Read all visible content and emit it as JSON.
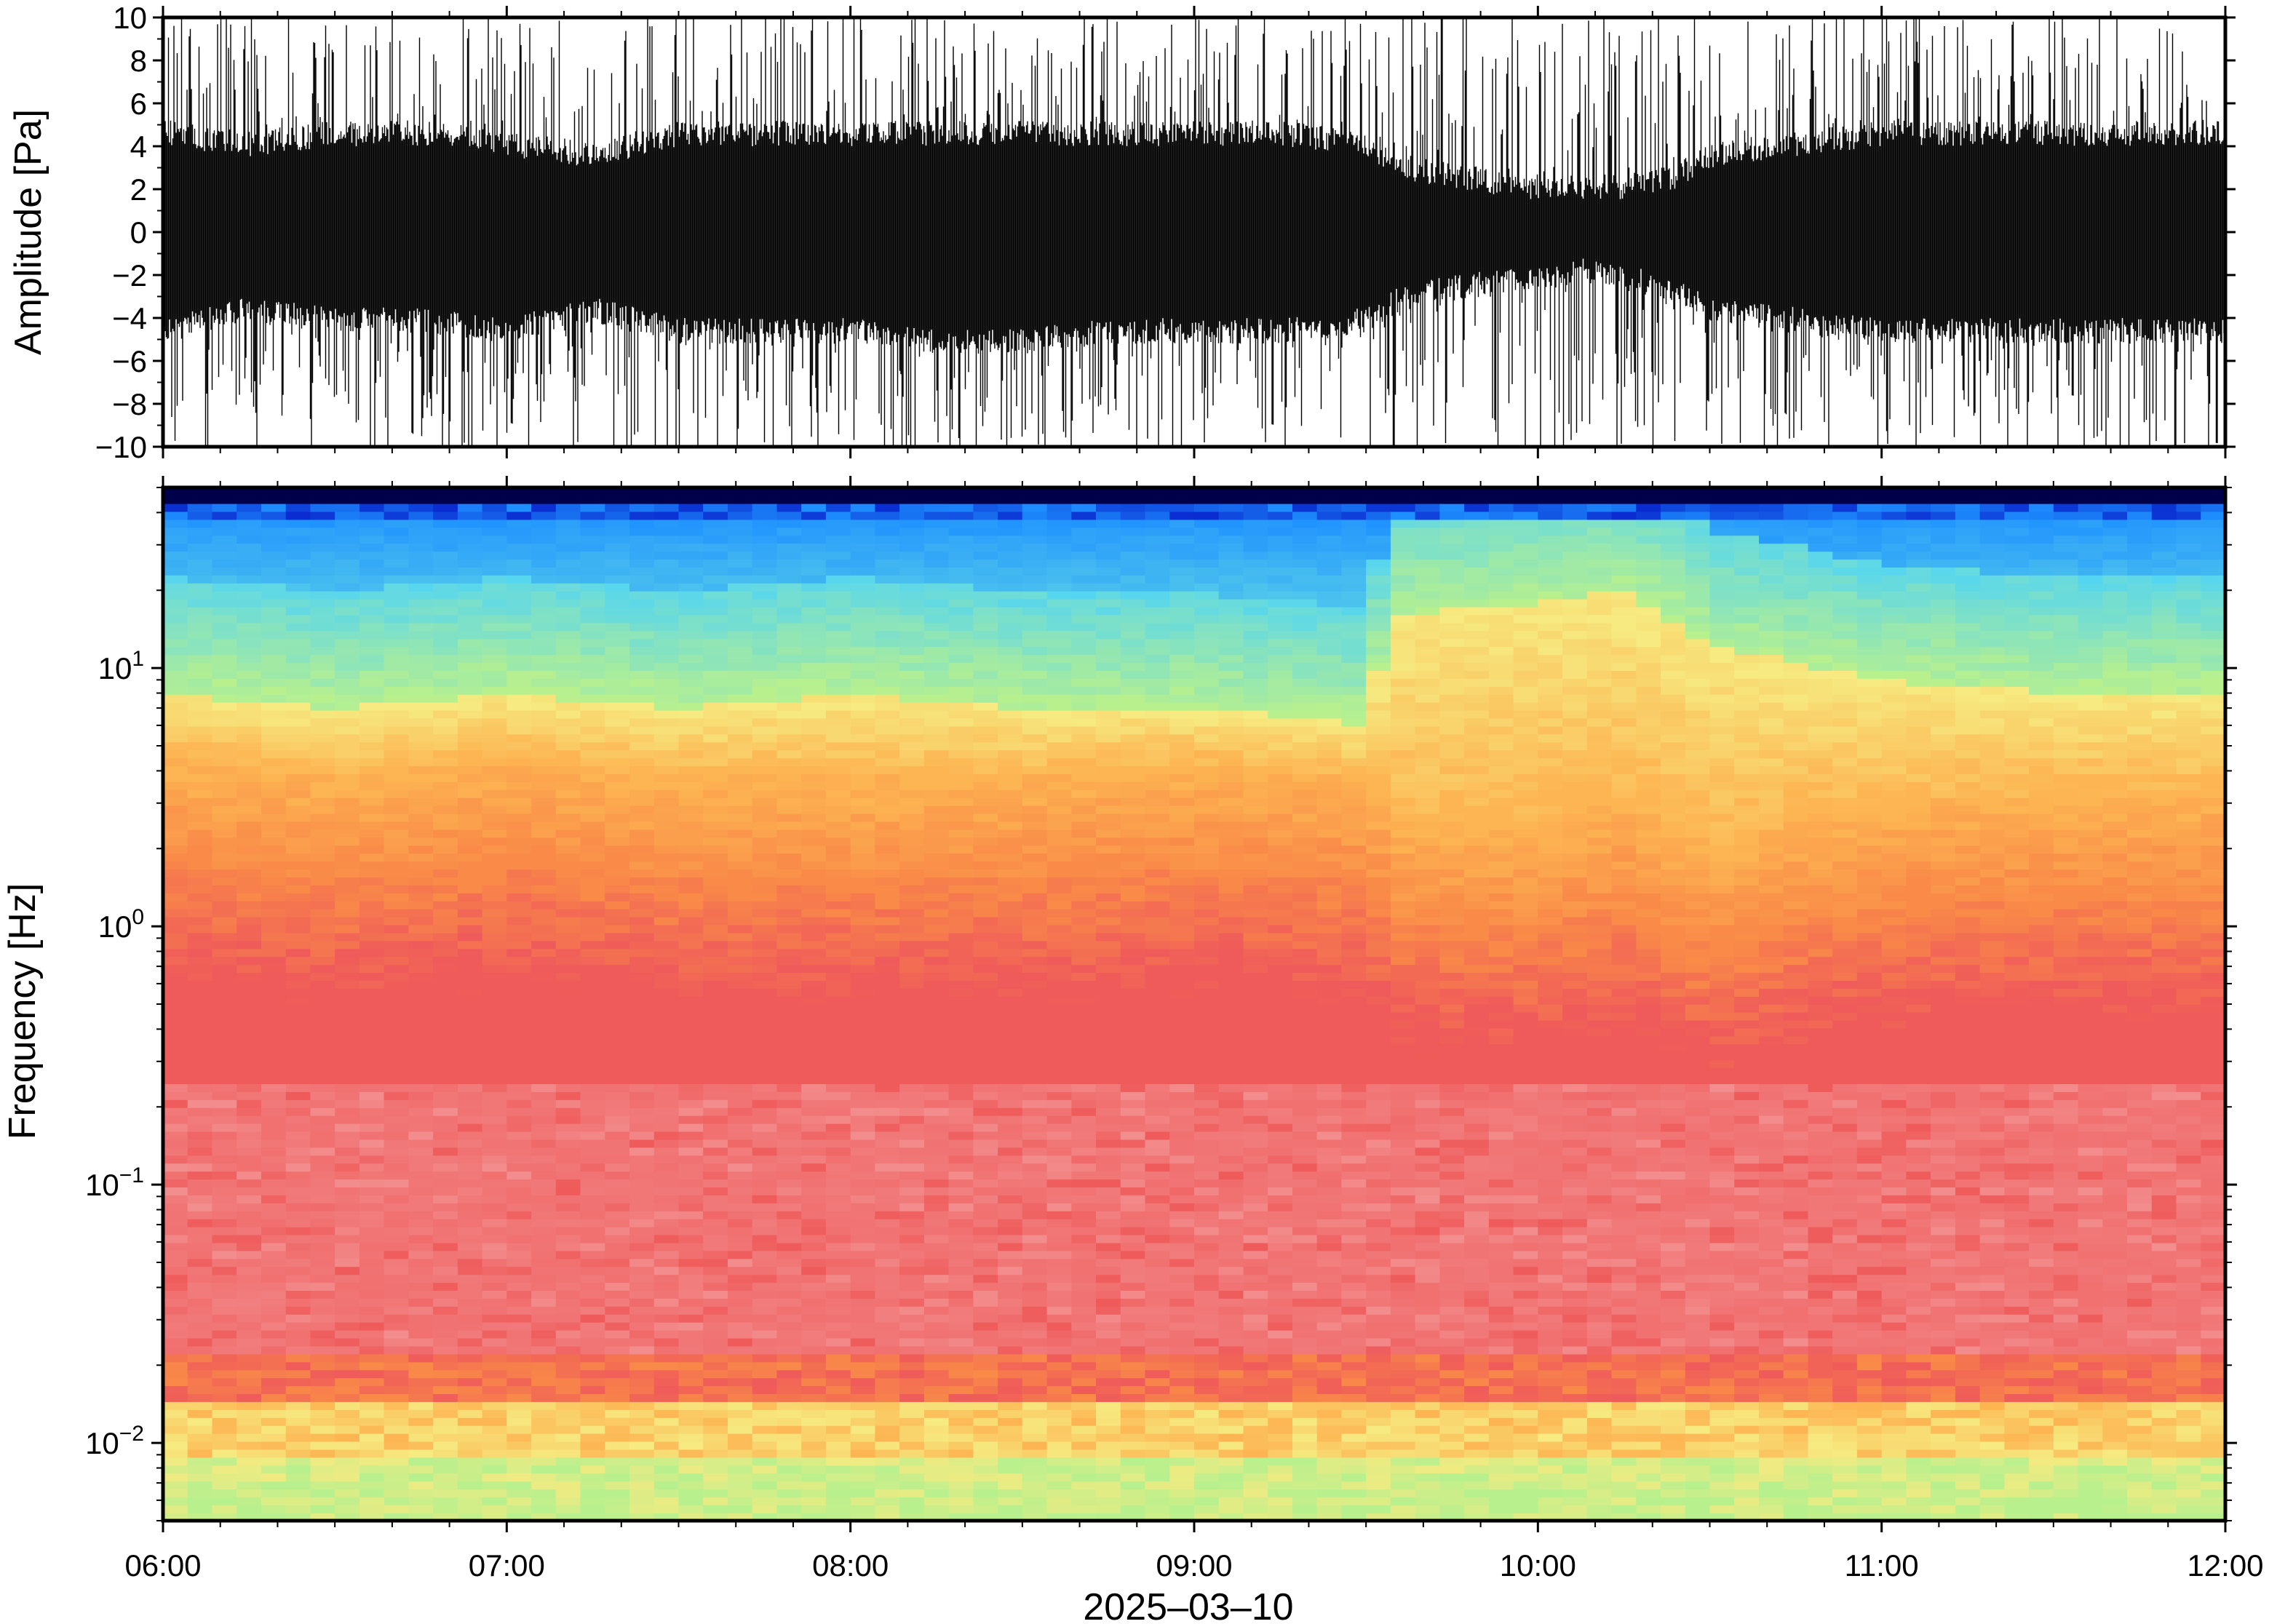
{
  "chart_data": [
    {
      "type": "line",
      "title": "",
      "ylabel": "Amplitude [Pa]",
      "xlabel": "",
      "ylim": [
        -10,
        10
      ],
      "yticks": [
        -10,
        -8,
        -6,
        -4,
        -2,
        0,
        2,
        4,
        6,
        8,
        10
      ],
      "ytick_labels": [
        "−10",
        "−8",
        "−6",
        "−4",
        "−2",
        "0",
        "2",
        "4",
        "6",
        "8",
        "10"
      ],
      "x_range": [
        "06:00",
        "12:00"
      ],
      "series": [
        {
          "color": "#000000",
          "envelope_time_hours": [
            6.0,
            6.25,
            6.5,
            6.75,
            7.0,
            7.25,
            7.5,
            7.75,
            8.0,
            8.25,
            8.5,
            8.75,
            9.0,
            9.25,
            9.5,
            9.6,
            9.75,
            10.0,
            10.15,
            10.25,
            10.4,
            10.5,
            10.75,
            11.0,
            11.25,
            11.5,
            11.75,
            12.0
          ],
          "envelope_upper": [
            4,
            3.5,
            4,
            4,
            3.5,
            3,
            4,
            4,
            4,
            4,
            4,
            4,
            4,
            4,
            3.5,
            2.5,
            2,
            1.5,
            1.5,
            1.5,
            2,
            3,
            3.5,
            4,
            4,
            4,
            4,
            4
          ],
          "envelope_lower": [
            -4,
            -3,
            -3.5,
            -3.5,
            -4,
            -3,
            -4,
            -4,
            -4,
            -4.5,
            -4.5,
            -4,
            -4,
            -4,
            -3.5,
            -2.5,
            -2,
            -1.5,
            -1.2,
            -1.5,
            -2,
            -3,
            -3.5,
            -4,
            -4,
            -4,
            -4,
            -4
          ],
          "peak_max": 10,
          "peak_min": -10
        }
      ],
      "grid": false
    },
    {
      "type": "heatmap",
      "title": "",
      "ylabel": "Frequency [Hz]",
      "xlabel": "2025‒03‒10",
      "y_scale": "log",
      "ylim": [
        0.005,
        50
      ],
      "yticks": [
        0.01,
        0.1,
        1,
        10
      ],
      "ytick_labels": [
        {
          "base": "10",
          "exp": "−2"
        },
        {
          "base": "10",
          "exp": "−1"
        },
        {
          "base": "10",
          "exp": "0"
        },
        {
          "base": "10",
          "exp": "1"
        }
      ],
      "xticks": [
        "06:00",
        "07:00",
        "08:00",
        "09:00",
        "10:00",
        "11:00",
        "12:00"
      ],
      "x_range": [
        "06:00",
        "12:00"
      ],
      "colormap": [
        "#00004a",
        "#0a2bd0",
        "#1e90ff",
        "#5fd8e6",
        "#b8f08e",
        "#f6ea80",
        "#fdb452",
        "#f98a48",
        "#ef5a5a",
        "#f49a9a"
      ],
      "band_time_hours": [
        6.0,
        6.5,
        7.0,
        7.5,
        8.0,
        8.5,
        9.0,
        9.5,
        9.6,
        10.0,
        10.25,
        10.5,
        11.0,
        11.5,
        12.0
      ],
      "band_green_yellow_top_hz": [
        8,
        7,
        8,
        7,
        8,
        7,
        7,
        6,
        16,
        18,
        20,
        12,
        9,
        8,
        8
      ],
      "band_orange_top_hz": [
        1.8,
        1.5,
        1.8,
        1.5,
        1.5,
        1.5,
        1.7,
        1.5,
        1.0,
        1.0,
        1.2,
        0.8,
        1.2,
        1.3,
        1.3
      ],
      "grid": false
    }
  ]
}
